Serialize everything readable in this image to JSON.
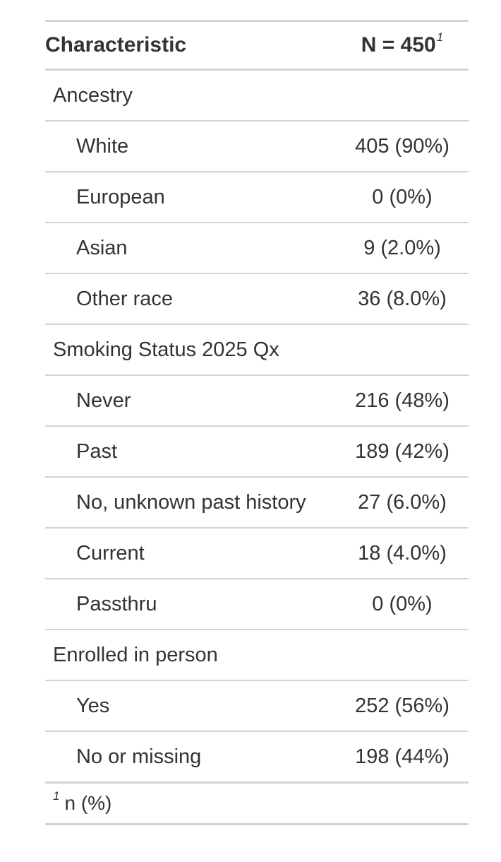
{
  "table": {
    "header": {
      "characteristic": "Characteristic",
      "n_label": "N = 450",
      "n_footnote_mark": "1"
    },
    "rows": [
      {
        "label": "Ancestry",
        "value": "",
        "type": "group"
      },
      {
        "label": "White",
        "value": "405 (90%)",
        "type": "level"
      },
      {
        "label": "European",
        "value": "0 (0%)",
        "type": "level"
      },
      {
        "label": "Asian",
        "value": "9 (2.0%)",
        "type": "level"
      },
      {
        "label": "Other race",
        "value": "36 (8.0%)",
        "type": "level"
      },
      {
        "label": "Smoking Status 2025 Qx",
        "value": "",
        "type": "group"
      },
      {
        "label": "Never",
        "value": "216 (48%)",
        "type": "level"
      },
      {
        "label": "Past",
        "value": "189 (42%)",
        "type": "level"
      },
      {
        "label": "No, unknown past history",
        "value": "27 (6.0%)",
        "type": "level"
      },
      {
        "label": "Current",
        "value": "18 (4.0%)",
        "type": "level"
      },
      {
        "label": "Passthru",
        "value": "0 (0%)",
        "type": "level"
      },
      {
        "label": "Enrolled in person",
        "value": "",
        "type": "group"
      },
      {
        "label": "Yes",
        "value": "252 (56%)",
        "type": "level"
      },
      {
        "label": "No or missing",
        "value": "198 (44%)",
        "type": "level"
      }
    ],
    "footnote": {
      "mark": "1",
      "text": "n (%)"
    }
  }
}
